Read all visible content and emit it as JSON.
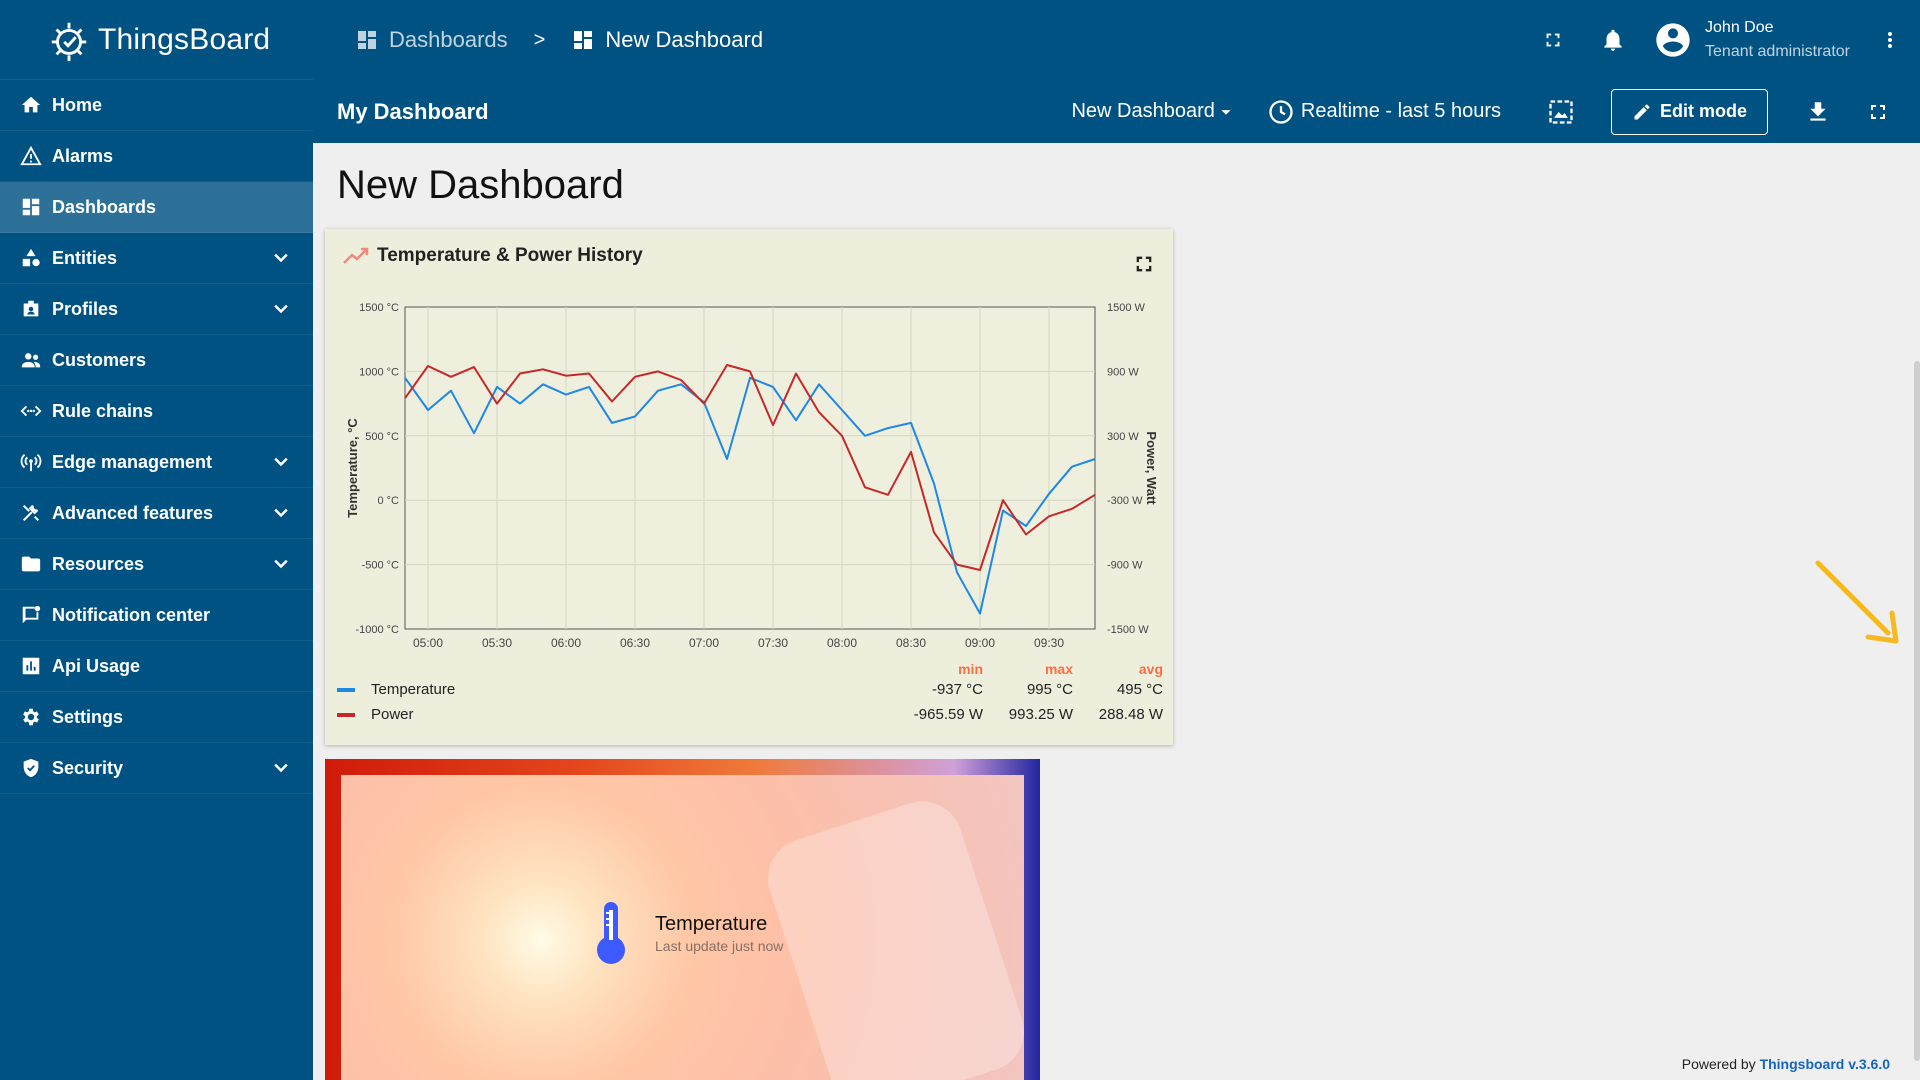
{
  "sidebar": {
    "brand": "ThingsBoard",
    "items": [
      {
        "label": "Home",
        "icon": "home-icon"
      },
      {
        "label": "Alarms",
        "icon": "warning-icon"
      },
      {
        "label": "Dashboards",
        "icon": "dashboard-icon",
        "active": true
      },
      {
        "label": "Entities",
        "icon": "entities-icon",
        "expandable": true
      },
      {
        "label": "Profiles",
        "icon": "profiles-icon",
        "expandable": true
      },
      {
        "label": "Customers",
        "icon": "customers-icon"
      },
      {
        "label": "Rule chains",
        "icon": "rule-chains-icon"
      },
      {
        "label": "Edge management",
        "icon": "edge-icon",
        "expandable": true
      },
      {
        "label": "Advanced features",
        "icon": "tools-icon",
        "expandable": true
      },
      {
        "label": "Resources",
        "icon": "folder-icon",
        "expandable": true
      },
      {
        "label": "Notification center",
        "icon": "notification-icon"
      },
      {
        "label": "Api Usage",
        "icon": "api-usage-icon"
      },
      {
        "label": "Settings",
        "icon": "gear-icon"
      },
      {
        "label": "Security",
        "icon": "shield-icon",
        "expandable": true
      }
    ]
  },
  "topbar": {
    "breadcrumb": [
      {
        "label": "Dashboards"
      },
      {
        "label": "New Dashboard"
      }
    ],
    "separator": ">",
    "user": {
      "name": "John Doe",
      "role": "Tenant administrator"
    }
  },
  "dashbar": {
    "title": "My Dashboard",
    "state_select": "New Dashboard",
    "timewindow": "Realtime - last 5 hours",
    "edit_label": "Edit mode"
  },
  "main": {
    "dashboard_title": "New Dashboard"
  },
  "chart_widget": {
    "title": "Temperature & Power History",
    "legend_headers": [
      "min",
      "max",
      "avg"
    ],
    "legend_rows": [
      {
        "label": "Temperature",
        "min": "-937 °C",
        "max": "995 °C",
        "avg": "495 °C",
        "color": "#1e88e5"
      },
      {
        "label": "Power",
        "min": "-965.59 W",
        "max": "993.25 W",
        "avg": "288.48 W",
        "color": "#c62828"
      }
    ]
  },
  "chart_data": {
    "type": "line",
    "title": "Temperature & Power History",
    "x_ticks": [
      "05:00",
      "05:30",
      "06:00",
      "06:30",
      "07:00",
      "07:30",
      "08:00",
      "08:30",
      "09:00",
      "09:30"
    ],
    "x_range": [
      "04:50",
      "09:50"
    ],
    "y_left": {
      "label": "Temperature, °C",
      "range": [
        -1000,
        1500
      ],
      "ticks": [
        "1500 °C",
        "1000 °C",
        "500 °C",
        "0 °C",
        "-500 °C",
        "-1000 °C"
      ]
    },
    "y_right": {
      "label": "Power, Watt",
      "range": [
        -1500,
        1500
      ],
      "ticks": [
        "1500 W",
        "900 W",
        "300 W",
        "-300 W",
        "-900 W",
        "-1500 W"
      ]
    },
    "grid": true,
    "series": [
      {
        "name": "Temperature",
        "color": "#1e88e5",
        "axis": "left",
        "x": [
          "04:50",
          "05:00",
          "05:10",
          "05:20",
          "05:30",
          "05:40",
          "05:50",
          "06:00",
          "06:10",
          "06:20",
          "06:30",
          "06:40",
          "06:50",
          "07:00",
          "07:10",
          "07:20",
          "07:30",
          "07:40",
          "07:50",
          "08:00",
          "08:10",
          "08:20",
          "08:30",
          "08:40",
          "08:50",
          "09:00",
          "09:10",
          "09:20",
          "09:30",
          "09:40",
          "09:50"
        ],
        "values": [
          950,
          700,
          850,
          520,
          880,
          750,
          900,
          820,
          880,
          600,
          650,
          850,
          900,
          760,
          320,
          950,
          880,
          620,
          900,
          700,
          500,
          560,
          600,
          130,
          -560,
          -880,
          -80,
          -200,
          50,
          260,
          320
        ]
      },
      {
        "name": "Power",
        "color": "#c62828",
        "axis": "right",
        "x": [
          "04:50",
          "05:00",
          "05:10",
          "05:20",
          "05:30",
          "05:40",
          "05:50",
          "06:00",
          "06:10",
          "06:20",
          "06:30",
          "06:40",
          "06:50",
          "07:00",
          "07:10",
          "07:20",
          "07:30",
          "07:40",
          "07:50",
          "08:00",
          "08:10",
          "08:20",
          "08:30",
          "08:40",
          "08:50",
          "09:00",
          "09:10",
          "09:20",
          "09:30",
          "09:40",
          "09:50"
        ],
        "values": [
          650,
          950,
          850,
          940,
          600,
          880,
          920,
          860,
          880,
          620,
          850,
          900,
          820,
          600,
          960,
          900,
          400,
          880,
          520,
          300,
          -180,
          -250,
          150,
          -600,
          -900,
          -950,
          -300,
          -620,
          -450,
          -380,
          -250
        ]
      }
    ]
  },
  "temp_widget": {
    "label": "Temperature",
    "update": "Last update just now"
  },
  "footer": {
    "prefix": "Powered by ",
    "link": "Thingsboard v.3.6.0"
  }
}
